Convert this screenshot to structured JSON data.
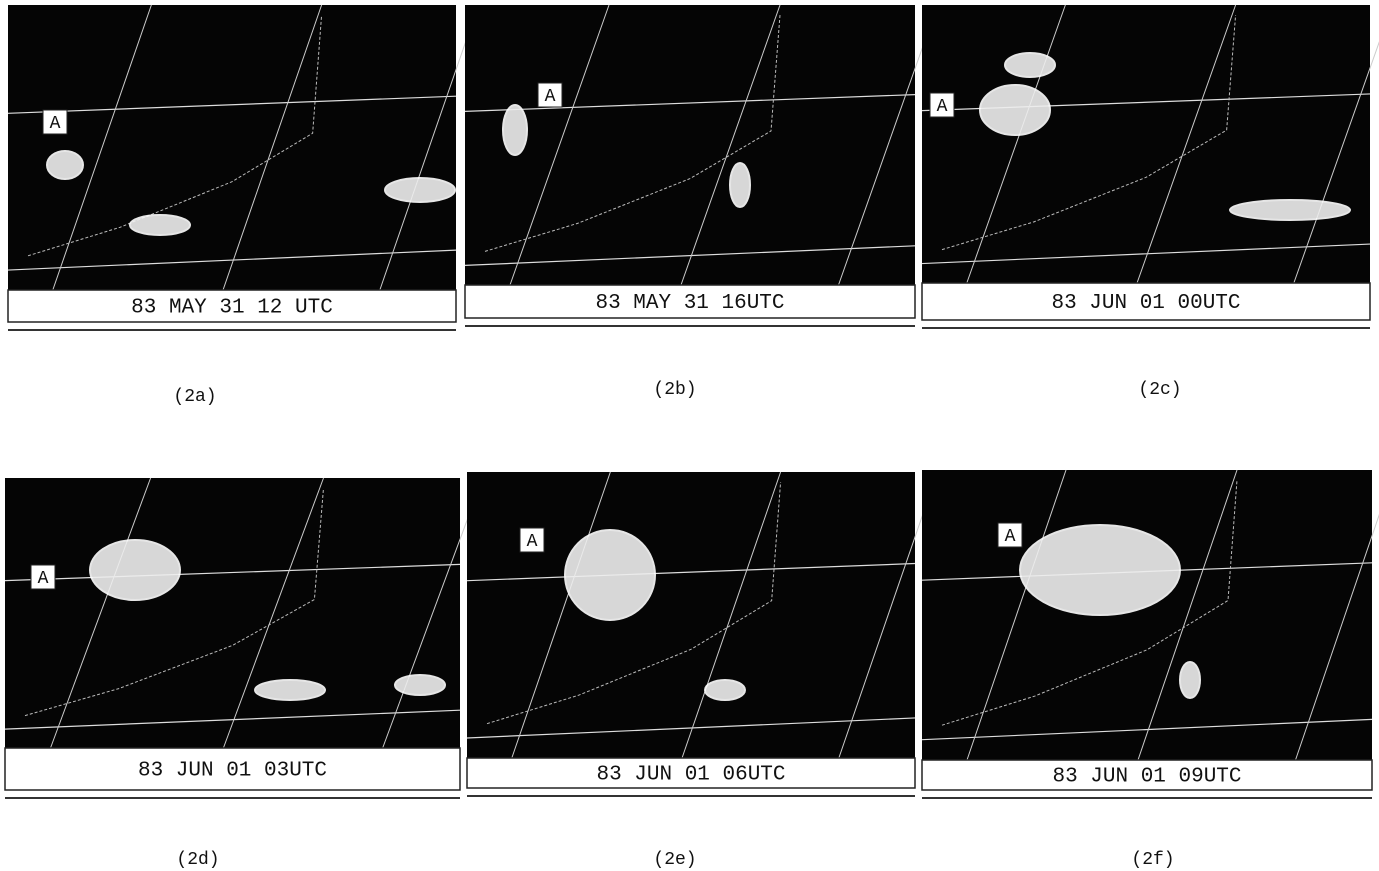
{
  "panels": [
    {
      "marker": "A",
      "caption": "83 MAY 31 12 UTC",
      "label": "(2a)"
    },
    {
      "marker": "A",
      "caption": "83 MAY 31 16UTC",
      "label": "(2b)"
    },
    {
      "marker": "A",
      "caption": "83 JUN 01 00UTC",
      "label": "(2c)"
    },
    {
      "marker": "A",
      "caption": "83 JUN 01 03UTC",
      "label": "(2d)"
    },
    {
      "marker": "A",
      "caption": "83 JUN 01 06UTC",
      "label": "(2e)"
    },
    {
      "marker": "A",
      "caption": "83 JUN 01 09UTC",
      "label": "(2f)"
    }
  ]
}
